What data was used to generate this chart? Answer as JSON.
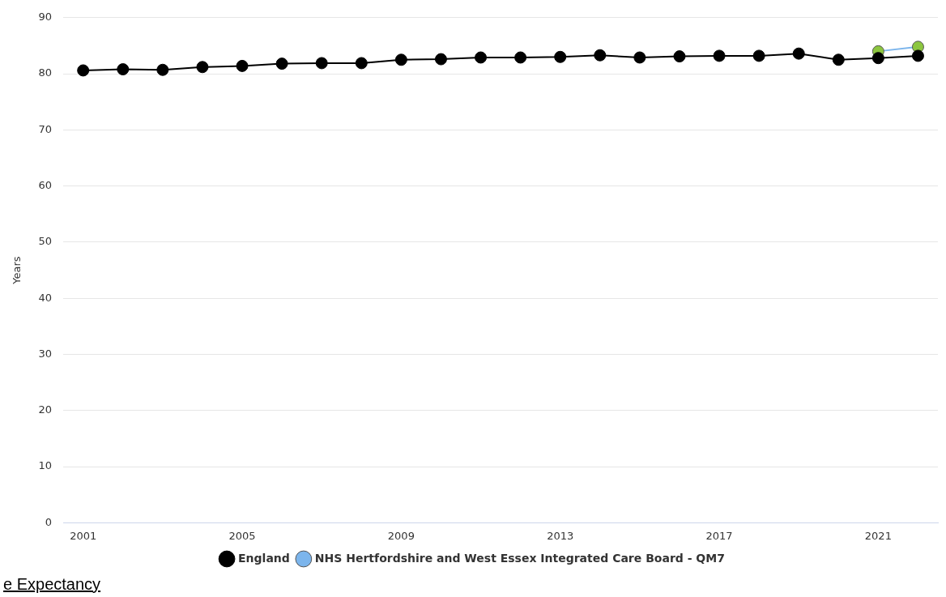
{
  "chart_data": {
    "type": "line",
    "ylabel": "Years",
    "categories": [
      "2001",
      null,
      null,
      null,
      "2005",
      null,
      null,
      null,
      "2009",
      null,
      null,
      null,
      "2013",
      null,
      null,
      null,
      "2017",
      null,
      null,
      null,
      "2021",
      null
    ],
    "series": [
      {
        "name": "England",
        "color": "#000000",
        "values": [
          80.6,
          80.8,
          80.7,
          81.2,
          81.4,
          81.8,
          81.9,
          81.9,
          82.5,
          82.6,
          82.9,
          82.9,
          83.0,
          83.3,
          82.9,
          83.1,
          83.2,
          83.2,
          83.6,
          82.5,
          82.8,
          83.2
        ]
      },
      {
        "name": "NHS Hertfordshire and West Essex Integrated Care Board - QM7",
        "color": "#7cb5ec",
        "colors": [
          null,
          null,
          null,
          null,
          null,
          null,
          null,
          null,
          null,
          null,
          null,
          null,
          null,
          null,
          null,
          null,
          null,
          null,
          null,
          null,
          "#8cc63f",
          "#8cc63f"
        ],
        "values": [
          null,
          null,
          null,
          null,
          null,
          null,
          null,
          null,
          null,
          null,
          null,
          null,
          null,
          null,
          null,
          null,
          null,
          null,
          null,
          null,
          84.0,
          84.8
        ]
      }
    ],
    "ylim": [
      0,
      90
    ],
    "yticks": [
      0,
      10,
      20,
      30,
      40,
      50,
      60,
      70,
      80,
      90
    ],
    "grid": "y",
    "legend": "bottom",
    "marker": "circle",
    "line_style": "solid",
    "annotations": [
      "e Expectancy"
    ]
  }
}
